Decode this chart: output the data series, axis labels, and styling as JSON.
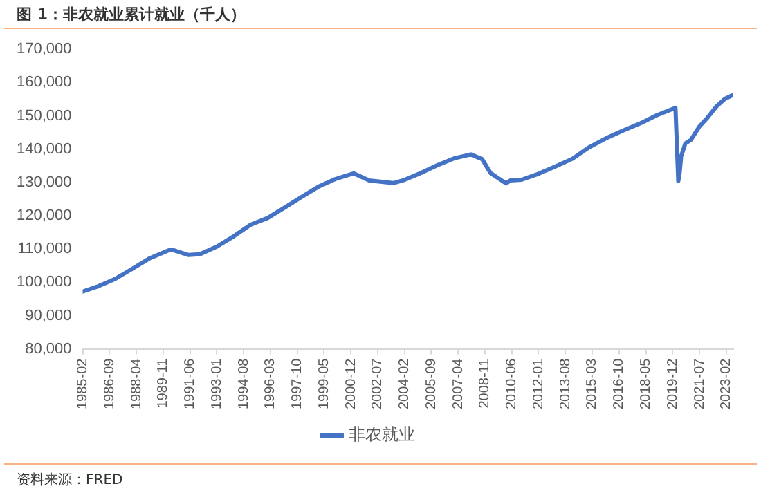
{
  "chart_data": {
    "type": "line",
    "title": "图 1：非农就业累计就业（千人）",
    "annotations": [
      "资料来源：FRED"
    ],
    "x": [
      "1985-02",
      "1986-01",
      "1987-01",
      "1988-01",
      "1989-01",
      "1990-03",
      "1990-06",
      "1991-05",
      "1992-01",
      "1993-01",
      "1994-01",
      "1995-01",
      "1996-01",
      "1997-01",
      "1998-01",
      "1999-01",
      "2000-01",
      "2001-02",
      "2002-01",
      "2003-06",
      "2004-01",
      "2005-01",
      "2006-01",
      "2007-01",
      "2008-01",
      "2008-09",
      "2009-03",
      "2010-02",
      "2010-05",
      "2011-01",
      "2012-01",
      "2013-01",
      "2014-01",
      "2015-01",
      "2016-01",
      "2017-01",
      "2018-01",
      "2019-01",
      "2020-02",
      "2020-04",
      "2020-05",
      "2020-06",
      "2020-09",
      "2021-01",
      "2021-07",
      "2022-01",
      "2022-07",
      "2023-01",
      "2023-07"
    ],
    "series": [
      {
        "name": "非农就业",
        "color": "#4472c4",
        "values": [
          97200,
          98800,
          101000,
          104000,
          107100,
          109600,
          109700,
          108200,
          108400,
          110700,
          113800,
          117300,
          119300,
          122400,
          125600,
          128700,
          131000,
          132700,
          130600,
          129800,
          130600,
          132700,
          135100,
          137200,
          138400,
          137000,
          132800,
          129700,
          130600,
          130800,
          132600,
          134800,
          137100,
          140600,
          143300,
          145600,
          147700,
          150200,
          152400,
          130400,
          133000,
          137800,
          141700,
          142800,
          146800,
          149600,
          152800,
          155100,
          156300
        ]
      }
    ],
    "xlim": [
      "1985-02",
      "2023-07"
    ],
    "xticks": [
      "1985-02",
      "1986-09",
      "1988-04",
      "1989-11",
      "1991-06",
      "1993-01",
      "1994-08",
      "1996-03",
      "1997-10",
      "1999-05",
      "2000-12",
      "2002-07",
      "2004-02",
      "2005-09",
      "2007-04",
      "2008-11",
      "2010-06",
      "2012-01",
      "2013-08",
      "2015-03",
      "2016-10",
      "2018-05",
      "2019-12",
      "2021-07",
      "2023-02"
    ],
    "ylim": [
      80000,
      170000
    ],
    "yticks": [
      {
        "value": 80000,
        "label": "80,000"
      },
      {
        "value": 90000,
        "label": "90,000"
      },
      {
        "value": 100000,
        "label": "100,000"
      },
      {
        "value": 110000,
        "label": "110,000"
      },
      {
        "value": 120000,
        "label": "120,000"
      },
      {
        "value": 130000,
        "label": "130,000"
      },
      {
        "value": 140000,
        "label": "140,000"
      },
      {
        "value": 150000,
        "label": "150,000"
      },
      {
        "value": 160000,
        "label": "160,000"
      },
      {
        "value": 170000,
        "label": "170,000"
      }
    ],
    "grid": false,
    "legend": "bottom",
    "marker": "none",
    "line_style": "solid"
  }
}
